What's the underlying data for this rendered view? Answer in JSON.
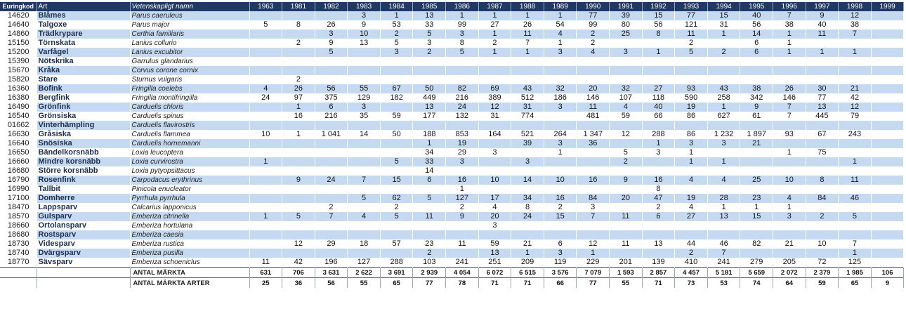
{
  "table": {
    "headers": [
      "Euringkod",
      "Art",
      "Vetenskapligt namn",
      "1963",
      "1981",
      "1982",
      "1983",
      "1984",
      "1985",
      "1986",
      "1987",
      "1988",
      "1989",
      "1990",
      "1991",
      "1992",
      "1993",
      "1994",
      "1995",
      "1996",
      "1997",
      "1998",
      "1999"
    ],
    "rows": [
      {
        "code": "14620",
        "name": "Blåmes",
        "latin": "Parus caeruleus",
        "values": [
          null,
          null,
          null,
          "3",
          "1",
          "13",
          "1",
          "1",
          "1",
          "1",
          "77",
          "39",
          "15",
          "77",
          "15",
          "40",
          "7",
          "9",
          "12",
          null
        ]
      },
      {
        "code": "14640",
        "name": "Talgoxe",
        "latin": "Parus major",
        "values": [
          "5",
          "8",
          "26",
          "9",
          "53",
          "33",
          "99",
          "27",
          "26",
          "54",
          "99",
          "80",
          "56",
          "121",
          "31",
          "56",
          "38",
          "40",
          "38",
          null
        ]
      },
      {
        "code": "14860",
        "name": "Trädkrypare",
        "latin": "Certhia familiaris",
        "values": [
          null,
          null,
          "3",
          "10",
          "2",
          "5",
          "3",
          "1",
          "11",
          "4",
          "2",
          "25",
          "8",
          "11",
          "1",
          "14",
          "1",
          "11",
          "7",
          null
        ]
      },
      {
        "code": "15150",
        "name": "Törnskata",
        "latin": "Lanius collurio",
        "values": [
          null,
          "2",
          "9",
          "13",
          "5",
          "3",
          "8",
          "2",
          "7",
          "1",
          "2",
          null,
          null,
          "2",
          null,
          "6",
          "1",
          null,
          null,
          null
        ]
      },
      {
        "code": "15200",
        "name": "Varfågel",
        "latin": "Lanius excubitor",
        "values": [
          null,
          null,
          "5",
          null,
          "3",
          "2",
          "5",
          "1",
          "1",
          "3",
          "4",
          "3",
          "1",
          "5",
          "2",
          "6",
          "1",
          "1",
          "1",
          null
        ]
      },
      {
        "code": "15390",
        "name": "Nötskrika",
        "latin": "Garrulus glandarius",
        "values": [
          null,
          null,
          null,
          null,
          null,
          null,
          null,
          null,
          null,
          null,
          null,
          null,
          null,
          null,
          null,
          null,
          null,
          null,
          null,
          null
        ]
      },
      {
        "code": "15670",
        "name": "Kråka",
        "latin": "Corvus corone cornix",
        "values": [
          null,
          null,
          null,
          null,
          null,
          null,
          null,
          null,
          null,
          null,
          null,
          null,
          null,
          null,
          null,
          null,
          null,
          null,
          null,
          null
        ]
      },
      {
        "code": "15820",
        "name": "Stare",
        "latin": "Sturnus vulgaris",
        "values": [
          null,
          "2",
          null,
          null,
          null,
          null,
          null,
          null,
          null,
          null,
          null,
          null,
          null,
          null,
          null,
          null,
          null,
          null,
          null,
          null
        ]
      },
      {
        "code": "16360",
        "name": "Bofink",
        "latin": "Fringilla coelebs",
        "values": [
          "4",
          "26",
          "56",
          "55",
          "67",
          "50",
          "82",
          "69",
          "43",
          "32",
          "20",
          "32",
          "27",
          "93",
          "43",
          "38",
          "26",
          "30",
          "21",
          null
        ]
      },
      {
        "code": "16380",
        "name": "Bergfink",
        "latin": "Fringilla montifringilla",
        "values": [
          "24",
          "97",
          "375",
          "129",
          "182",
          "449",
          "216",
          "389",
          "512",
          "186",
          "146",
          "107",
          "118",
          "590",
          "258",
          "342",
          "146",
          "77",
          "42",
          null
        ]
      },
      {
        "code": "16490",
        "name": "Grönfink",
        "latin": "Carduelis chloris",
        "values": [
          null,
          "1",
          "6",
          "3",
          null,
          "13",
          "24",
          "12",
          "31",
          "3",
          "11",
          "4",
          "40",
          "19",
          "1",
          "9",
          "7",
          "13",
          "12",
          null
        ]
      },
      {
        "code": "16540",
        "name": "Grönsiska",
        "latin": "Carduelis spinus",
        "values": [
          null,
          "16",
          "216",
          "35",
          "59",
          "177",
          "132",
          "31",
          "774",
          null,
          "481",
          "59",
          "66",
          "86",
          "627",
          "61",
          "7",
          "445",
          "79",
          null
        ]
      },
      {
        "code": "01662",
        "name": "Vinterhämpling",
        "latin": "Carduelis flavirostris",
        "values": [
          null,
          null,
          null,
          null,
          null,
          null,
          null,
          null,
          null,
          null,
          null,
          null,
          null,
          null,
          null,
          null,
          null,
          null,
          null,
          null
        ]
      },
      {
        "code": "16630",
        "name": "Gråsiska",
        "latin": "Carduelis flammea",
        "values": [
          "10",
          "1",
          "1 041",
          "14",
          "50",
          "188",
          "853",
          "164",
          "521",
          "264",
          "1 347",
          "12",
          "288",
          "86",
          "1 232",
          "1 897",
          "93",
          "67",
          "243",
          null
        ]
      },
      {
        "code": "16640",
        "name": "Snösiska",
        "latin": "Carduelis hornemanni",
        "values": [
          null,
          null,
          null,
          null,
          null,
          "1",
          "19",
          null,
          "39",
          "3",
          "36",
          null,
          "1",
          "3",
          "3",
          "21",
          null,
          null,
          null,
          null
        ]
      },
      {
        "code": "16650",
        "name": "Bändelkorsnäbb",
        "latin": "Loxia leucoptera",
        "values": [
          null,
          null,
          null,
          null,
          null,
          "34",
          "29",
          "3",
          null,
          "1",
          null,
          "5",
          "3",
          "1",
          null,
          null,
          "1",
          "75",
          null,
          null
        ]
      },
      {
        "code": "16660",
        "name": "Mindre korsnäbb",
        "latin": "Loxia curvirostra",
        "values": [
          "1",
          null,
          null,
          null,
          "5",
          "33",
          "3",
          null,
          "3",
          null,
          null,
          "2",
          null,
          "1",
          "1",
          null,
          null,
          null,
          "1",
          null
        ]
      },
      {
        "code": "16680",
        "name": "Större korsnäbb",
        "latin": "Loxia pytyopsittacus",
        "values": [
          null,
          null,
          null,
          null,
          null,
          "14",
          null,
          null,
          null,
          null,
          null,
          null,
          null,
          null,
          null,
          null,
          null,
          null,
          null,
          null
        ]
      },
      {
        "code": "16790",
        "name": "Rosenfink",
        "latin": "Carpodacus erythrinus",
        "values": [
          null,
          "9",
          "24",
          "7",
          "15",
          "6",
          "16",
          "10",
          "14",
          "10",
          "16",
          "9",
          "16",
          "4",
          "4",
          "25",
          "10",
          "8",
          "11",
          null
        ]
      },
      {
        "code": "16990",
        "name": "Tallbit",
        "latin": "Pinicola enucleator",
        "values": [
          null,
          null,
          null,
          null,
          null,
          null,
          "1",
          null,
          null,
          null,
          null,
          null,
          "8",
          null,
          null,
          null,
          null,
          null,
          null,
          null
        ]
      },
      {
        "code": "17100",
        "name": "Domherre",
        "latin": "Pyrrhula pyrrhula",
        "values": [
          null,
          null,
          null,
          "5",
          "62",
          "5",
          "127",
          "17",
          "34",
          "16",
          "84",
          "20",
          "47",
          "19",
          "28",
          "23",
          "4",
          "84",
          "46",
          null
        ]
      },
      {
        "code": "18470",
        "name": "Lappsparv",
        "latin": "Calcarius lapponicus",
        "values": [
          null,
          null,
          "2",
          null,
          "2",
          null,
          "2",
          "4",
          "8",
          "2",
          "3",
          null,
          "2",
          "4",
          "1",
          "1",
          "1",
          null,
          null,
          null
        ]
      },
      {
        "code": "18570",
        "name": "Gulsparv",
        "latin": "Emberiza citrinella",
        "values": [
          "1",
          "5",
          "7",
          "4",
          "5",
          "11",
          "9",
          "20",
          "24",
          "15",
          "7",
          "11",
          "6",
          "27",
          "13",
          "15",
          "3",
          "2",
          "5",
          null
        ]
      },
      {
        "code": "18660",
        "name": "Ortolansparv",
        "latin": "Emberiza hortulana",
        "values": [
          null,
          null,
          null,
          null,
          null,
          null,
          null,
          "3",
          null,
          null,
          null,
          null,
          null,
          null,
          null,
          null,
          null,
          null,
          null,
          null
        ]
      },
      {
        "code": "18680",
        "name": "Rostsparv",
        "latin": "Emberiza caesia",
        "values": [
          null,
          null,
          null,
          null,
          null,
          null,
          null,
          null,
          null,
          null,
          null,
          null,
          null,
          null,
          null,
          null,
          null,
          null,
          null,
          null
        ]
      },
      {
        "code": "18730",
        "name": "Videsparv",
        "latin": "Emberiza rustica",
        "values": [
          null,
          "12",
          "29",
          "18",
          "57",
          "23",
          "11",
          "59",
          "21",
          "6",
          "12",
          "11",
          "13",
          "44",
          "46",
          "82",
          "21",
          "10",
          "7",
          null
        ]
      },
      {
        "code": "18740",
        "name": "Dvärgsparv",
        "latin": "Emberiza pusilla",
        "values": [
          null,
          null,
          null,
          null,
          null,
          "2",
          null,
          "13",
          "1",
          "3",
          "1",
          null,
          null,
          "2",
          "7",
          null,
          null,
          null,
          "1",
          null
        ]
      },
      {
        "code": "18770",
        "name": "Sävsparv",
        "latin": "Emberiza schoeniclus",
        "values": [
          "11",
          "42",
          "196",
          "127",
          "288",
          "103",
          "241",
          "251",
          "209",
          "119",
          "229",
          "201",
          "139",
          "410",
          "241",
          "279",
          "205",
          "72",
          "125",
          null
        ]
      }
    ],
    "totals": [
      {
        "label": "ANTAL MÄRKTA",
        "values": [
          "631",
          "706",
          "3 631",
          "2 622",
          "3 691",
          "2 939",
          "4 054",
          "6 072",
          "6 515",
          "3 576",
          "7 079",
          "1 593",
          "2 857",
          "4 457",
          "5 181",
          "5 659",
          "2 072",
          "2 379",
          "1 985",
          "106"
        ]
      },
      {
        "label": "ANTAL MÄRKTA ARTER",
        "values": [
          "25",
          "36",
          "56",
          "55",
          "65",
          "77",
          "78",
          "71",
          "71",
          "66",
          "77",
          "55",
          "71",
          "73",
          "53",
          "74",
          "64",
          "59",
          "65",
          "9"
        ]
      }
    ]
  }
}
